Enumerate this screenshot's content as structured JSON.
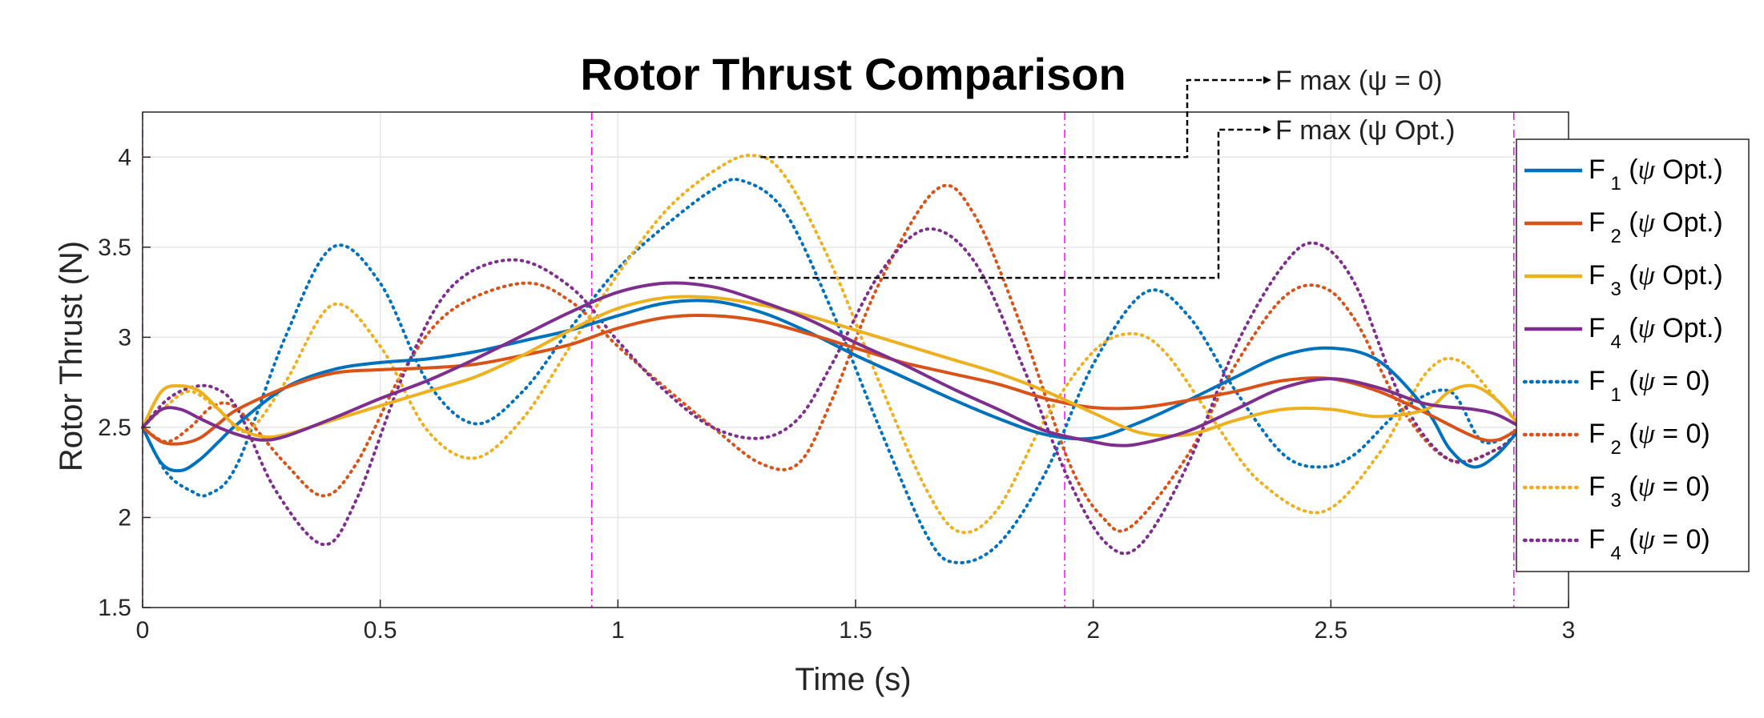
{
  "chart_data": {
    "type": "line",
    "title": "Rotor Thrust Comparison",
    "xlabel": "Time (s)",
    "ylabel": "Rotor Thrust (N)",
    "xlim": [
      0,
      3
    ],
    "ylim": [
      1.5,
      4.25
    ],
    "xticks": [
      0,
      0.5,
      1,
      1.5,
      2,
      2.5,
      3
    ],
    "xtick_labels": [
      "0",
      "0.5",
      "1",
      "1.5",
      "2",
      "2.5",
      "3"
    ],
    "yticks": [
      1.5,
      2,
      2.5,
      3,
      3.5,
      4
    ],
    "ytick_labels": [
      "1.5",
      "2",
      "2.5",
      "3",
      "3.5",
      "4"
    ],
    "grid": true,
    "legend_position": "right",
    "vlines": [
      0.945,
      1.94,
      2.885
    ],
    "annotations": [
      {
        "text": "F max (ψ = 0)",
        "value": 4.0,
        "x_start": 1.3
      },
      {
        "text": "F max (ψ Opt.)",
        "value": 3.33,
        "x_start": 1.15
      }
    ],
    "series": [
      {
        "name": "F1 (ψ Opt.)",
        "label_main": "F",
        "label_sub": "1",
        "label_open": " (",
        "label_psi": "ψ",
        "label_rest": " Opt.)",
        "color": "#0072BD",
        "style": "solid",
        "x": [
          0,
          0.04,
          0.08,
          0.12,
          0.16,
          0.2,
          0.3,
          0.4,
          0.5,
          0.6,
          0.7,
          0.8,
          0.9,
          1.0,
          1.1,
          1.2,
          1.3,
          1.4,
          1.5,
          1.6,
          1.7,
          1.8,
          1.9,
          2.0,
          2.1,
          2.2,
          2.3,
          2.4,
          2.5,
          2.6,
          2.7,
          2.75,
          2.8,
          2.85,
          2.9
        ],
        "y": [
          2.5,
          2.3,
          2.26,
          2.32,
          2.42,
          2.52,
          2.72,
          2.82,
          2.86,
          2.88,
          2.92,
          2.98,
          3.04,
          3.12,
          3.19,
          3.2,
          3.14,
          3.03,
          2.9,
          2.78,
          2.66,
          2.55,
          2.46,
          2.44,
          2.53,
          2.65,
          2.78,
          2.9,
          2.94,
          2.87,
          2.6,
          2.38,
          2.28,
          2.35,
          2.5
        ]
      },
      {
        "name": "F2 (ψ Opt.)",
        "label_main": "F",
        "label_sub": "2",
        "label_open": " (",
        "label_psi": "ψ",
        "label_rest": " Opt.)",
        "color": "#D95319",
        "style": "solid",
        "x": [
          0,
          0.04,
          0.08,
          0.12,
          0.16,
          0.2,
          0.3,
          0.4,
          0.5,
          0.6,
          0.7,
          0.8,
          0.9,
          1.0,
          1.1,
          1.2,
          1.3,
          1.4,
          1.5,
          1.6,
          1.7,
          1.8,
          1.9,
          2.0,
          2.1,
          2.2,
          2.3,
          2.4,
          2.5,
          2.6,
          2.7,
          2.8,
          2.85,
          2.9
        ],
        "y": [
          2.5,
          2.42,
          2.41,
          2.44,
          2.52,
          2.6,
          2.72,
          2.8,
          2.82,
          2.83,
          2.85,
          2.9,
          2.96,
          3.05,
          3.11,
          3.12,
          3.09,
          3.02,
          2.94,
          2.86,
          2.8,
          2.74,
          2.66,
          2.61,
          2.61,
          2.65,
          2.7,
          2.76,
          2.77,
          2.7,
          2.58,
          2.45,
          2.43,
          2.5
        ]
      },
      {
        "name": "F3 (ψ Opt.)",
        "label_main": "F",
        "label_sub": "3",
        "label_open": " (",
        "label_psi": "ψ",
        "label_rest": " Opt.)",
        "color": "#EDB120",
        "style": "solid",
        "x": [
          0,
          0.04,
          0.08,
          0.12,
          0.16,
          0.2,
          0.25,
          0.3,
          0.4,
          0.5,
          0.6,
          0.7,
          0.8,
          0.9,
          1.0,
          1.1,
          1.2,
          1.3,
          1.4,
          1.5,
          1.6,
          1.7,
          1.8,
          1.9,
          2.0,
          2.1,
          2.2,
          2.3,
          2.4,
          2.5,
          2.6,
          2.7,
          2.75,
          2.8,
          2.85,
          2.9
        ],
        "y": [
          2.5,
          2.7,
          2.73,
          2.7,
          2.6,
          2.5,
          2.45,
          2.46,
          2.54,
          2.62,
          2.7,
          2.78,
          2.9,
          3.04,
          3.16,
          3.22,
          3.22,
          3.18,
          3.12,
          3.04,
          2.96,
          2.88,
          2.8,
          2.7,
          2.58,
          2.47,
          2.46,
          2.54,
          2.6,
          2.6,
          2.56,
          2.6,
          2.7,
          2.73,
          2.65,
          2.5
        ]
      },
      {
        "name": "F4 (ψ Opt.)",
        "label_main": "F",
        "label_sub": "4",
        "label_open": " (",
        "label_psi": "ψ",
        "label_rest": " Opt.)",
        "color": "#7E2F8E",
        "style": "solid",
        "x": [
          0,
          0.04,
          0.08,
          0.12,
          0.16,
          0.2,
          0.25,
          0.3,
          0.4,
          0.5,
          0.6,
          0.7,
          0.8,
          0.9,
          1.0,
          1.1,
          1.2,
          1.3,
          1.4,
          1.5,
          1.6,
          1.7,
          1.8,
          1.9,
          2.0,
          2.05,
          2.1,
          2.2,
          2.3,
          2.4,
          2.5,
          2.6,
          2.7,
          2.8,
          2.85,
          2.9
        ],
        "y": [
          2.5,
          2.6,
          2.6,
          2.55,
          2.5,
          2.46,
          2.43,
          2.45,
          2.55,
          2.66,
          2.76,
          2.88,
          3.01,
          3.14,
          3.25,
          3.3,
          3.28,
          3.2,
          3.1,
          2.97,
          2.85,
          2.72,
          2.6,
          2.48,
          2.42,
          2.4,
          2.41,
          2.48,
          2.6,
          2.72,
          2.77,
          2.72,
          2.63,
          2.6,
          2.57,
          2.5
        ]
      },
      {
        "name": "F1 (ψ = 0)",
        "label_main": "F",
        "label_sub": "1",
        "label_open": " (",
        "label_psi": "ψ",
        "label_rest": " = 0)",
        "color": "#0072BD",
        "style": "dotted",
        "x": [
          0,
          0.05,
          0.1,
          0.14,
          0.2,
          0.3,
          0.4,
          0.5,
          0.6,
          0.7,
          0.8,
          0.9,
          1.0,
          1.1,
          1.2,
          1.26,
          1.35,
          1.45,
          1.55,
          1.65,
          1.71,
          1.8,
          1.9,
          2.0,
          2.11,
          2.2,
          2.3,
          2.4,
          2.48,
          2.55,
          2.65,
          2.75,
          2.82,
          2.9
        ],
        "y": [
          2.5,
          2.25,
          2.15,
          2.13,
          2.3,
          3.0,
          3.5,
          3.3,
          2.75,
          2.52,
          2.7,
          3.05,
          3.38,
          3.62,
          3.82,
          3.87,
          3.7,
          3.15,
          2.5,
          1.9,
          1.75,
          1.85,
          2.25,
          2.85,
          3.25,
          3.12,
          2.7,
          2.35,
          2.28,
          2.35,
          2.6,
          2.7,
          2.42,
          2.5
        ]
      },
      {
        "name": "F2 (ψ = 0)",
        "label_main": "F",
        "label_sub": "2",
        "label_open": " (",
        "label_psi": "ψ",
        "label_rest": " = 0)",
        "color": "#D95319",
        "style": "dotted",
        "x": [
          0,
          0.05,
          0.1,
          0.15,
          0.2,
          0.3,
          0.38,
          0.45,
          0.55,
          0.65,
          0.8,
          0.9,
          1.0,
          1.1,
          1.2,
          1.3,
          1.38,
          1.45,
          1.55,
          1.67,
          1.75,
          1.85,
          1.95,
          2.02,
          2.08,
          2.2,
          2.3,
          2.4,
          2.48,
          2.55,
          2.65,
          2.75,
          2.85,
          2.9
        ],
        "y": [
          2.5,
          2.42,
          2.5,
          2.62,
          2.6,
          2.3,
          2.12,
          2.3,
          2.82,
          3.15,
          3.3,
          3.2,
          2.95,
          2.72,
          2.5,
          2.3,
          2.3,
          2.65,
          3.3,
          3.82,
          3.68,
          3.05,
          2.3,
          2.0,
          1.95,
          2.35,
          2.85,
          3.22,
          3.28,
          3.1,
          2.6,
          2.32,
          2.38,
          2.5
        ]
      },
      {
        "name": "F3 (ψ = 0)",
        "label_main": "F",
        "label_sub": "3",
        "label_open": " (",
        "label_psi": "ψ",
        "label_rest": " = 0)",
        "color": "#EDB120",
        "style": "dotted",
        "x": [
          0,
          0.05,
          0.1,
          0.16,
          0.22,
          0.3,
          0.4,
          0.5,
          0.6,
          0.7,
          0.8,
          0.9,
          1.0,
          1.1,
          1.2,
          1.28,
          1.35,
          1.45,
          1.55,
          1.65,
          1.72,
          1.8,
          1.9,
          2.0,
          2.08,
          2.15,
          2.25,
          2.35,
          2.48,
          2.6,
          2.7,
          2.77,
          2.85,
          2.9
        ],
        "y": [
          2.5,
          2.62,
          2.7,
          2.6,
          2.48,
          2.75,
          3.18,
          2.95,
          2.48,
          2.33,
          2.55,
          2.95,
          3.35,
          3.7,
          3.92,
          4.01,
          3.9,
          3.4,
          2.75,
          2.15,
          1.92,
          2.05,
          2.55,
          2.92,
          3.02,
          2.92,
          2.55,
          2.2,
          2.03,
          2.35,
          2.8,
          2.87,
          2.65,
          2.5
        ]
      },
      {
        "name": "F4 (ψ = 0)",
        "label_main": "F",
        "label_sub": "4",
        "label_open": " (",
        "label_psi": "ψ",
        "label_rest": " = 0)",
        "color": "#7E2F8E",
        "style": "dotted",
        "x": [
          0,
          0.05,
          0.1,
          0.15,
          0.2,
          0.28,
          0.38,
          0.45,
          0.55,
          0.65,
          0.78,
          0.9,
          1.0,
          1.1,
          1.2,
          1.3,
          1.38,
          1.45,
          1.55,
          1.65,
          1.75,
          1.85,
          1.95,
          2.03,
          2.1,
          2.2,
          2.3,
          2.4,
          2.47,
          2.55,
          2.65,
          2.75,
          2.85,
          2.9
        ],
        "y": [
          2.5,
          2.65,
          2.72,
          2.72,
          2.6,
          2.15,
          1.85,
          2.1,
          2.8,
          3.28,
          3.43,
          3.28,
          2.98,
          2.7,
          2.5,
          2.44,
          2.55,
          2.85,
          3.35,
          3.6,
          3.42,
          2.85,
          2.2,
          1.85,
          1.85,
          2.3,
          2.95,
          3.4,
          3.52,
          3.3,
          2.65,
          2.32,
          2.38,
          2.5
        ]
      }
    ]
  }
}
